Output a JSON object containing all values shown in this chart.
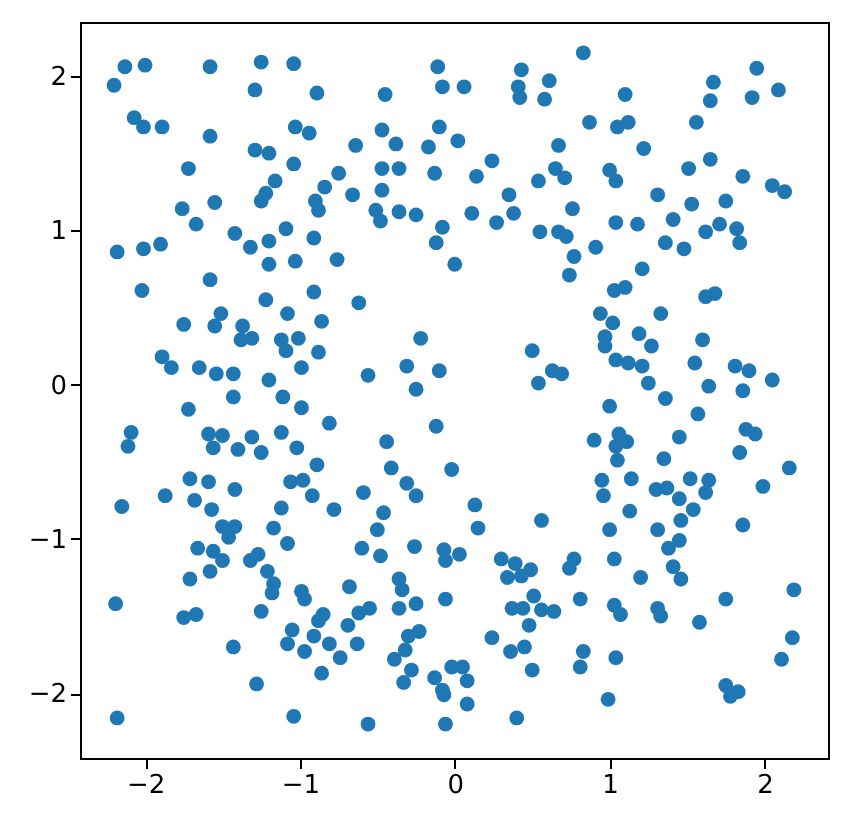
{
  "chart_data": {
    "type": "scatter",
    "marker": "circle",
    "xlim": [
      -2.42,
      2.41
    ],
    "ylim": [
      -2.42,
      2.35
    ],
    "xticks": [
      -2,
      -1,
      0,
      1,
      2
    ],
    "yticks": [
      -2,
      -1,
      0,
      1,
      2
    ],
    "series": [
      {
        "color": "#1f77b4",
        "x": [
          -2.2,
          -2.13,
          -2.0,
          -2.07,
          -2.01,
          -1.89,
          -1.58,
          -1.25,
          -1.29,
          -1.04,
          -0.89,
          -0.45,
          -0.11,
          -0.08,
          -1.58,
          -1.29,
          -1.2,
          -1.03,
          -0.94,
          -1.72,
          -1.04,
          -1.16,
          -1.22,
          -1.25,
          -1.55,
          -1.76,
          -1.67,
          -0.64,
          -0.75,
          -0.84,
          -0.66,
          -0.9,
          -0.88,
          -0.47,
          -0.38,
          -0.47,
          -0.36,
          -0.47,
          -0.51,
          -0.48,
          -0.36,
          -0.25,
          -0.17,
          -0.1,
          -0.13,
          -0.08,
          -0.12,
          -2.18,
          -2.01,
          -1.9,
          -1.42,
          -1.32,
          -1.2,
          -1.2,
          -1.09,
          -1.03,
          -0.91,
          -0.76,
          -2.02,
          -1.58,
          -1.22,
          -1.08,
          -0.91,
          -0.62,
          -1.75,
          -1.51,
          -1.55,
          -1.37,
          -1.38,
          -1.31,
          -1.12,
          -1.01,
          -0.86,
          -1.09,
          -0.88,
          -1.89,
          -1.83,
          -1.65,
          -1.54,
          -1.43,
          -1.2,
          -0.99,
          -0.56,
          -0.31,
          -0.22,
          -0.1,
          0.83,
          0.43,
          0.41,
          0.42,
          0.61,
          0.58,
          0.06,
          1.1,
          0.87,
          1.05,
          1.12,
          1.22,
          1.67,
          1.65,
          1.56,
          1.95,
          1.92,
          2.09,
          0.02,
          0.67,
          0.24,
          0.14,
          0.54,
          0.65,
          0.71,
          1.0,
          1.04,
          1.51,
          1.65,
          1.86,
          2.05,
          2.13,
          0.35,
          0.11,
          0.38,
          0.27,
          0.76,
          1.31,
          1.53,
          1.75,
          1.04,
          1.18,
          1.41,
          0.55,
          0.67,
          0.72,
          0.91,
          1.36,
          1.48,
          1.62,
          1.71,
          1.82,
          1.84,
          0.0,
          0.77,
          0.74,
          1.21,
          1.03,
          1.1,
          1.62,
          1.68,
          0.94,
          1.02,
          1.33,
          0.97,
          1.19,
          1.27,
          0.97,
          1.6,
          0.5,
          0.63,
          0.69,
          0.54,
          1.04,
          1.12,
          1.21,
          1.25,
          1.55,
          1.81,
          1.9,
          2.05,
          1.64,
          -1.72,
          -1.43,
          -1.11,
          -0.99,
          -0.81,
          -2.09,
          -2.11,
          -1.59,
          -1.5,
          -1.56,
          -1.4,
          -1.31,
          -1.25,
          -1.12,
          -1.02,
          -0.89,
          -0.44,
          -0.41,
          -0.31,
          -0.25,
          -0.12,
          -0.25,
          -0.02,
          -2.15,
          -1.87,
          -1.71,
          -1.59,
          -1.68,
          -1.57,
          -1.42,
          -1.5,
          -1.42,
          -1.46,
          -1.06,
          -0.98,
          -0.92,
          -1.12,
          -1.17,
          -1.08,
          -0.78,
          -0.59,
          -0.46,
          -0.5,
          -0.6,
          -0.48,
          -0.26,
          -1.66,
          -1.56,
          -1.5,
          -1.58,
          -1.71,
          -1.32,
          -1.27,
          -1.21,
          -1.17,
          -1.18,
          -0.99,
          -0.97,
          -1.25,
          -0.68,
          -0.36,
          -0.34,
          -0.36,
          -0.25,
          -0.55,
          -0.62,
          -0.69,
          -0.85,
          -0.88,
          -2.19,
          -1.75,
          -1.67,
          -1.05,
          -1.08,
          -0.91,
          -0.81,
          -0.97,
          -0.74,
          -0.63,
          -1.43,
          -0.3,
          -0.23,
          -0.32,
          -0.39,
          -0.28,
          -0.33,
          -0.86,
          -1.28,
          -0.13,
          -0.08,
          -0.07,
          -0.02,
          -0.06,
          -0.07,
          -0.06,
          -2.18,
          -1.04,
          -0.56,
          -0.06,
          1.36,
          1.86,
          1.0,
          1.57,
          1.88,
          1.94,
          1.84,
          2.16,
          1.99,
          0.9,
          1.06,
          1.04,
          1.11,
          1.05,
          1.45,
          1.35,
          0.95,
          0.96,
          1.14,
          1.3,
          1.37,
          1.45,
          1.52,
          1.64,
          1.62,
          0.13,
          0.15,
          0.56,
          1.13,
          1.0,
          1.31,
          1.46,
          1.54,
          1.45,
          1.38,
          1.86,
          0.03,
          0.3,
          0.39,
          0.34,
          0.49,
          0.43,
          0.77,
          0.74,
          1.03,
          1.2,
          1.41,
          1.46,
          0.51,
          0.37,
          0.44,
          0.56,
          0.64,
          0.48,
          0.81,
          1.03,
          1.07,
          1.31,
          1.33,
          1.58,
          1.75,
          2.19,
          2.18,
          2.11,
          0.24,
          0.36,
          0.45,
          0.5,
          0.83,
          0.81,
          1.04,
          0.05,
          0.08,
          0.08,
          0.4,
          0.99,
          1.75,
          1.78,
          1.83
        ],
        "values": [
          1.94,
          2.06,
          2.07,
          1.73,
          1.67,
          1.67,
          2.06,
          2.09,
          1.91,
          2.08,
          1.89,
          1.88,
          2.06,
          1.93,
          1.61,
          1.52,
          1.5,
          1.67,
          1.63,
          1.4,
          1.43,
          1.32,
          1.24,
          1.19,
          1.18,
          1.14,
          1.04,
          1.55,
          1.37,
          1.28,
          1.23,
          1.19,
          1.13,
          1.65,
          1.56,
          1.4,
          1.4,
          1.26,
          1.13,
          1.06,
          1.12,
          1.1,
          1.54,
          1.67,
          1.37,
          1.02,
          0.92,
          0.86,
          0.88,
          0.91,
          0.98,
          0.89,
          0.93,
          0.78,
          1.01,
          0.8,
          0.95,
          0.81,
          0.61,
          0.68,
          0.55,
          0.46,
          0.6,
          0.53,
          0.39,
          0.46,
          0.38,
          0.38,
          0.29,
          0.3,
          0.29,
          0.3,
          0.41,
          0.22,
          0.21,
          0.18,
          0.11,
          0.11,
          0.07,
          0.07,
          0.03,
          0.11,
          0.06,
          0.12,
          0.3,
          0.09,
          2.15,
          2.04,
          1.93,
          1.86,
          1.97,
          1.85,
          1.93,
          1.88,
          1.7,
          1.67,
          1.7,
          1.53,
          1.96,
          1.84,
          1.7,
          2.05,
          1.86,
          1.91,
          1.58,
          1.55,
          1.45,
          1.35,
          1.32,
          1.4,
          1.34,
          1.39,
          1.32,
          1.4,
          1.46,
          1.35,
          1.29,
          1.25,
          1.23,
          1.11,
          1.11,
          1.05,
          1.14,
          1.23,
          1.17,
          1.19,
          1.05,
          1.04,
          1.07,
          0.99,
          0.99,
          0.96,
          0.89,
          0.92,
          0.88,
          0.99,
          1.04,
          1.01,
          0.92,
          0.78,
          0.83,
          0.71,
          0.75,
          0.61,
          0.63,
          0.57,
          0.59,
          0.46,
          0.4,
          0.46,
          0.31,
          0.33,
          0.25,
          0.25,
          0.29,
          0.22,
          0.09,
          0.07,
          0.01,
          0.16,
          0.14,
          0.12,
          0.01,
          0.14,
          0.12,
          0.09,
          0.03,
          -0.01,
          -0.16,
          -0.08,
          -0.08,
          -0.15,
          -0.25,
          -0.31,
          -0.4,
          -0.32,
          -0.33,
          -0.41,
          -0.42,
          -0.34,
          -0.44,
          -0.31,
          -0.41,
          -0.52,
          -0.37,
          -0.54,
          -0.64,
          -0.72,
          -0.27,
          -0.03,
          -0.55,
          -0.79,
          -0.72,
          -0.61,
          -0.63,
          -0.75,
          -0.81,
          -0.68,
          -0.92,
          -0.92,
          -0.99,
          -0.63,
          -0.62,
          -0.72,
          -0.8,
          -0.93,
          -1.03,
          -0.81,
          -0.7,
          -0.83,
          -0.94,
          -1.06,
          -1.11,
          -1.05,
          -1.06,
          -1.08,
          -1.14,
          -1.21,
          -1.26,
          -1.14,
          -1.1,
          -1.21,
          -1.29,
          -1.35,
          -1.34,
          -1.39,
          -1.47,
          -1.31,
          -1.26,
          -1.33,
          -1.45,
          -1.42,
          -1.45,
          -1.48,
          -1.56,
          -1.49,
          -1.53,
          -1.42,
          -1.51,
          -1.49,
          -1.59,
          -1.68,
          -1.63,
          -1.68,
          -1.73,
          -1.77,
          -1.68,
          -1.7,
          -1.63,
          -1.6,
          -1.72,
          -1.78,
          -1.85,
          -1.93,
          -1.87,
          -1.94,
          -1.9,
          -1.98,
          -2.01,
          -1.83,
          -1.39,
          -1.07,
          -1.14,
          -2.16,
          -2.15,
          -2.2,
          -2.2,
          -0.09,
          -0.04,
          -0.14,
          -0.19,
          -0.29,
          -0.32,
          -0.44,
          -0.54,
          -0.66,
          -0.36,
          -0.32,
          -0.4,
          -0.37,
          -0.49,
          -0.34,
          -0.48,
          -0.62,
          -0.72,
          -0.61,
          -0.68,
          -0.67,
          -0.74,
          -0.61,
          -0.62,
          -0.7,
          -0.78,
          -0.93,
          -0.88,
          -0.82,
          -0.94,
          -0.94,
          -0.88,
          -0.81,
          -1.01,
          -1.06,
          -0.91,
          -1.1,
          -1.13,
          -1.16,
          -1.25,
          -1.2,
          -1.24,
          -1.13,
          -1.19,
          -1.13,
          -1.25,
          -1.18,
          -1.26,
          -1.37,
          -1.45,
          -1.45,
          -1.46,
          -1.47,
          -1.56,
          -1.39,
          -1.43,
          -1.49,
          -1.45,
          -1.5,
          -1.54,
          -1.39,
          -1.33,
          -1.64,
          -1.78,
          -1.64,
          -1.73,
          -1.7,
          -1.85,
          -1.73,
          -1.83,
          -1.77,
          -1.83,
          -1.92,
          -2.07,
          -2.16,
          -2.04,
          -1.95,
          -2.02,
          -1.99
        ]
      }
    ]
  }
}
